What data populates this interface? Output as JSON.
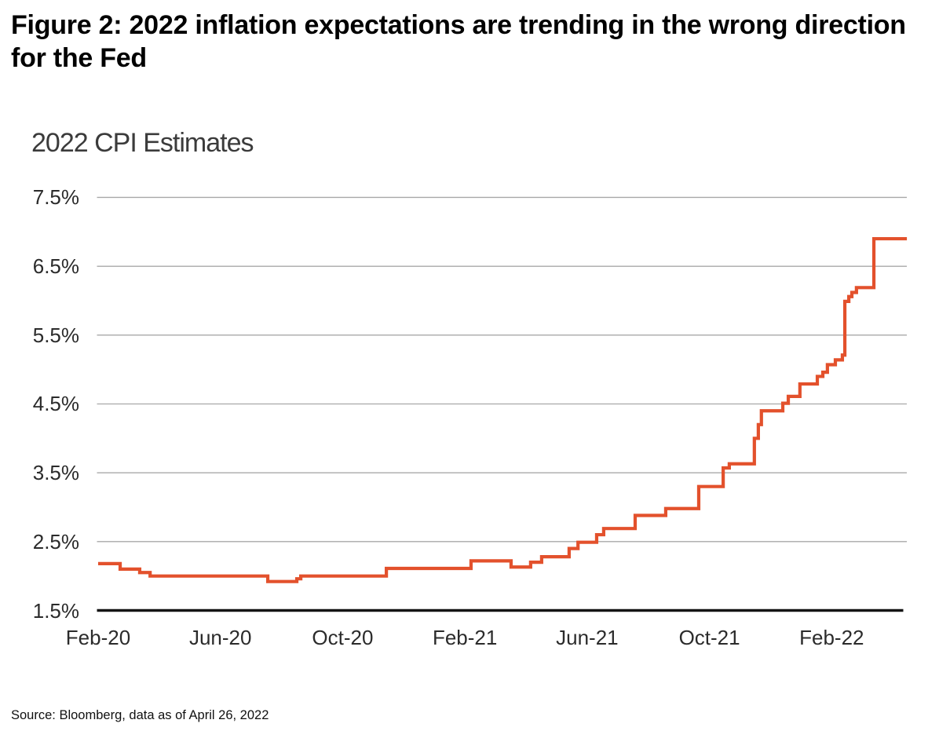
{
  "figure": {
    "title_lines": [
      "Figure 2: 2022 inflation expectations are trending in the wrong direction",
      "for the Fed"
    ],
    "source_note": "Source: Bloomberg, data as of April 26, 2022"
  },
  "chart_data": {
    "type": "line",
    "line_style": "step-after",
    "title": "2022 CPI Estimates",
    "series_name": "2022 CPI Estimates",
    "xlabel": "",
    "ylabel": "",
    "x_unit": "months since Feb-2020",
    "y_unit": "percent",
    "ylim": [
      1.5,
      7.5
    ],
    "xlim": [
      0,
      26.46
    ],
    "grid": "horizontal",
    "legend": "none",
    "colors": {
      "line": "#e3512c",
      "grid": "#a8a8a8",
      "baseline_axis": "#141414",
      "tick_text": "#2b2b2b",
      "title_text": "#3b3b3b",
      "background": "#ffffff"
    },
    "y_ticks": [
      {
        "value": 7.5,
        "label": "7.5%"
      },
      {
        "value": 6.5,
        "label": "6.5%"
      },
      {
        "value": 5.5,
        "label": "5.5%"
      },
      {
        "value": 4.5,
        "label": "4.5%"
      },
      {
        "value": 3.5,
        "label": "3.5%"
      },
      {
        "value": 2.5,
        "label": "2.5%"
      },
      {
        "value": 1.5,
        "label": "1.5%"
      }
    ],
    "x_ticks": [
      {
        "m": 0,
        "label": "Feb-20"
      },
      {
        "m": 4,
        "label": "Jun-20"
      },
      {
        "m": 8,
        "label": "Oct-20"
      },
      {
        "m": 12,
        "label": "Feb-21"
      },
      {
        "m": 16,
        "label": "Jun-21"
      },
      {
        "m": 20,
        "label": "Oct-21"
      },
      {
        "m": 24,
        "label": "Feb-22"
      }
    ],
    "points": [
      [
        0.0,
        2.18
      ],
      [
        0.72,
        2.1
      ],
      [
        1.36,
        2.05
      ],
      [
        1.7,
        2.0
      ],
      [
        5.55,
        1.92
      ],
      [
        6.5,
        1.96
      ],
      [
        6.63,
        2.0
      ],
      [
        9.43,
        2.11
      ],
      [
        12.2,
        2.22
      ],
      [
        13.51,
        2.13
      ],
      [
        14.15,
        2.2
      ],
      [
        14.51,
        2.28
      ],
      [
        15.41,
        2.4
      ],
      [
        15.7,
        2.49
      ],
      [
        16.31,
        2.6
      ],
      [
        16.54,
        2.69
      ],
      [
        17.57,
        2.88
      ],
      [
        18.57,
        2.98
      ],
      [
        19.65,
        3.3
      ],
      [
        20.45,
        3.57
      ],
      [
        20.65,
        3.63
      ],
      [
        21.47,
        4.0
      ],
      [
        21.6,
        4.2
      ],
      [
        21.7,
        4.4
      ],
      [
        22.4,
        4.51
      ],
      [
        22.58,
        4.61
      ],
      [
        22.96,
        4.79
      ],
      [
        23.53,
        4.9
      ],
      [
        23.71,
        4.96
      ],
      [
        23.86,
        5.07
      ],
      [
        24.12,
        5.14
      ],
      [
        24.35,
        5.21
      ],
      [
        24.43,
        5.99
      ],
      [
        24.56,
        6.06
      ],
      [
        24.66,
        6.12
      ],
      [
        24.81,
        6.19
      ],
      [
        25.38,
        6.9
      ]
    ],
    "x_end": 26.46
  }
}
